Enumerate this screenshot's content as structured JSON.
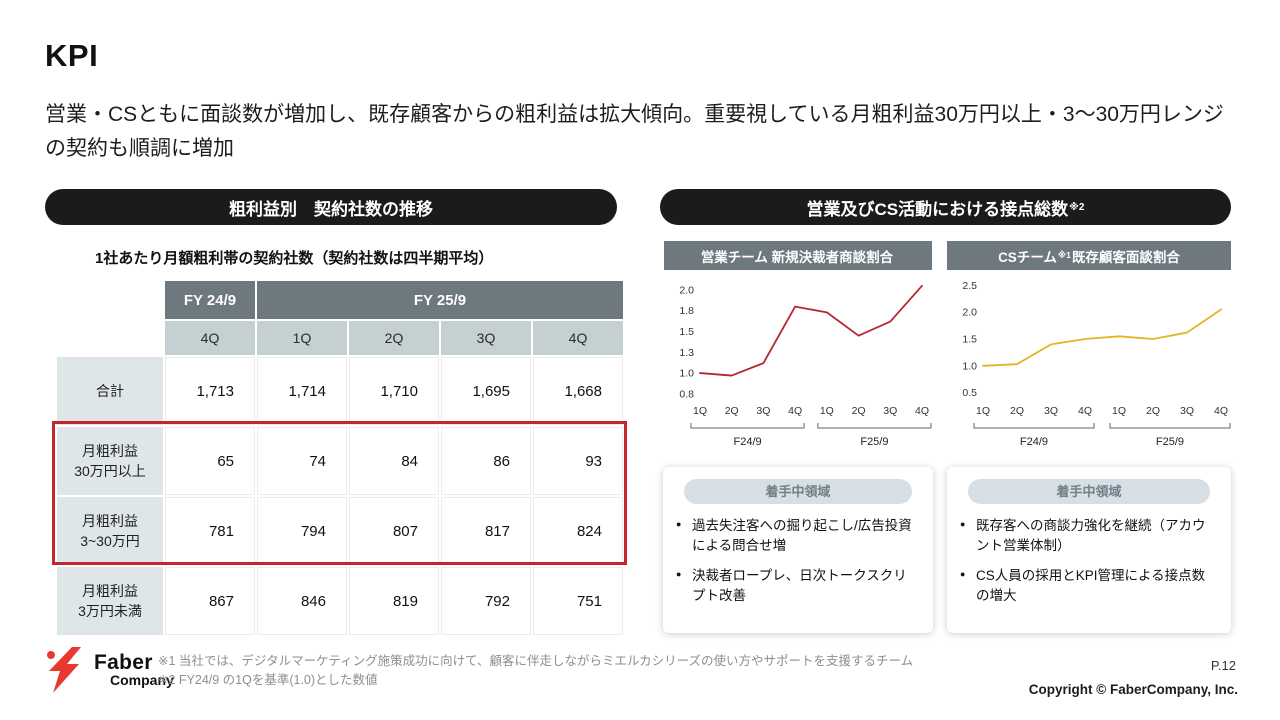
{
  "slide": {
    "title": "KPI",
    "subtitle": "営業・CSともに面談数が増加し、既存顧客からの粗利益は拡大傾向。重要視している月粗利益30万円以上・3〜30万円レンジの契約も順調に増加"
  },
  "gross_profit_section": {
    "header": "粗利益別　契約社数の推移",
    "table_title": "1社あたり月額粗利帯の契約社数（契約社数は四半期平均）",
    "table": {
      "fy24_header": "FY 24/9",
      "fy25_header": "FY 25/9",
      "quarters": [
        "4Q",
        "1Q",
        "2Q",
        "3Q",
        "4Q"
      ],
      "rows": [
        {
          "label": "合計",
          "values": [
            "1,713",
            "1,714",
            "1,710",
            "1,695",
            "1,668"
          ],
          "highlighted": false
        },
        {
          "label": "月粗利益\n30万円以上",
          "values": [
            "65",
            "74",
            "84",
            "86",
            "93"
          ],
          "highlighted": true
        },
        {
          "label": "月粗利益\n3~30万円",
          "values": [
            "781",
            "794",
            "807",
            "817",
            "824"
          ],
          "highlighted": true
        },
        {
          "label": "月粗利益\n3万円未満",
          "values": [
            "867",
            "846",
            "819",
            "792",
            "751"
          ],
          "highlighted": false
        }
      ]
    },
    "highlight_color": "#c1272d"
  },
  "contact_section": {
    "header_main": "営業及びCS活動における接点総数",
    "header_sup": "※2",
    "focus_cards": [
      {
        "pill": "着手中領域",
        "bullets": [
          "過去失注客への掘り起こし/広告投資による問合せ増",
          "決裁者ロープレ、日次トークスクリプト改善"
        ]
      },
      {
        "pill": "着手中領域",
        "bullets": [
          "既存客への商談力強化を継続（アカウント営業体制）",
          "CS人員の採用とKPI管理による接点数の増大"
        ]
      }
    ]
  },
  "chart_data": [
    {
      "type": "line",
      "title_main": "営業チーム 新規決裁者商談割合",
      "title_sup": "",
      "title_suffix": "",
      "x": [
        "1Q",
        "2Q",
        "3Q",
        "4Q",
        "1Q",
        "2Q",
        "3Q",
        "4Q"
      ],
      "x_groups": [
        "F24/9",
        "F25/9"
      ],
      "values": [
        1.0,
        0.97,
        1.12,
        1.8,
        1.73,
        1.45,
        1.62,
        2.05
      ],
      "ytick_labels": [
        "0.8",
        "1.0",
        "1.3",
        "1.5",
        "1.8",
        "2.0"
      ],
      "ytick_values": [
        0.75,
        1.0,
        1.25,
        1.5,
        1.75,
        2.0
      ],
      "ylim": [
        0.7,
        2.12
      ],
      "color": "#b2282f",
      "grid": false,
      "legend": "none"
    },
    {
      "type": "line",
      "title_main": "CSチーム",
      "title_sup": "※1",
      "title_suffix": " 既存顧客面談割合",
      "x": [
        "1Q",
        "2Q",
        "3Q",
        "4Q",
        "1Q",
        "2Q",
        "3Q",
        "4Q"
      ],
      "x_groups": [
        "F24/9",
        "F25/9"
      ],
      "values": [
        1.0,
        1.03,
        1.4,
        1.5,
        1.55,
        1.5,
        1.62,
        2.05
      ],
      "ytick_labels": [
        "0.5",
        "1.0",
        "1.5",
        "2.0",
        "2.5"
      ],
      "ytick_values": [
        0.5,
        1.0,
        1.5,
        2.0,
        2.5
      ],
      "ylim": [
        0.4,
        2.6
      ],
      "color": "#e6b422",
      "grid": false,
      "legend": "none"
    }
  ],
  "footer": {
    "logo_line1": "Faber",
    "logo_line2": "Company",
    "footnote1": "※1 当社では、デジタルマーケティング施策成功に向けて、顧客に伴走しながらミエルカシリーズの使い方やサポートを支援するチーム",
    "footnote2": "※2 FY24/9 の1Qを基準(1.0)とした数値",
    "page_number": "P.12",
    "copyright": "Copyright © FaberCompany, Inc."
  },
  "colors": {
    "accent_red": "#c1272d",
    "pill_black": "#1b1b1b",
    "header_gray": "#6d797e",
    "sales_line": "#b2282f",
    "cs_line": "#e6b422",
    "logo_red": "#e8382f"
  }
}
